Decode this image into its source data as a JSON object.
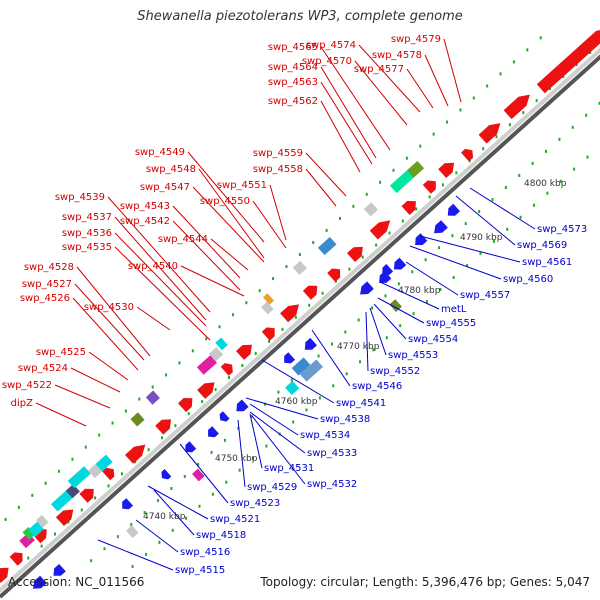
{
  "title": "Shewanella piezotolerans WP3, complete genome",
  "footer": {
    "accession": "Accession: NC_011566",
    "summary": "Topology: circular; Length: 5,396,476 bp; Genes: 5,047"
  },
  "colors": {
    "forward_label": "#d40000",
    "reverse_label": "#0000cc",
    "forward_gene": "#ee1111",
    "reverse_gene": "#1a1aee",
    "backbone": "#999999",
    "tick": "#22aa22"
  },
  "scale_labels": [
    "4740 kbp",
    "4750 kbp",
    "4760 kbp",
    "4770 kbp",
    "4780 kbp",
    "4790 kbp",
    "4800 kbp"
  ],
  "forward_labels": [
    "swp_4579",
    "swp_4578",
    "swp_4577",
    "swp_4574",
    "swp_4570",
    "swp_4565",
    "swp_4564",
    "swp_4563",
    "swp_4562",
    "swp_4559",
    "swp_4558",
    "swp_4549",
    "swp_4548",
    "swp_4547",
    "swp_4551",
    "swp_4550",
    "swp_4543",
    "swp_4542",
    "swp_4539",
    "swp_4537",
    "swp_4536",
    "swp_4535",
    "swp_4544",
    "swp_4540",
    "swp_4528",
    "swp_4527",
    "swp_4526",
    "swp_4530",
    "swp_4525",
    "swp_4524",
    "swp_4522",
    "dipZ"
  ],
  "reverse_labels": [
    "swp_4573",
    "swp_4569",
    "swp_4561",
    "swp_4560",
    "swp_4557",
    "metL",
    "swp_4555",
    "swp_4554",
    "swp_4553",
    "swp_4552",
    "swp_4546",
    "swp_4541",
    "swp_4538",
    "swp_4534",
    "swp_4533",
    "swp_4531",
    "swp_4532",
    "swp_4529",
    "swp_4523",
    "swp_4521",
    "swp_4518",
    "swp_4516",
    "swp_4515"
  ]
}
